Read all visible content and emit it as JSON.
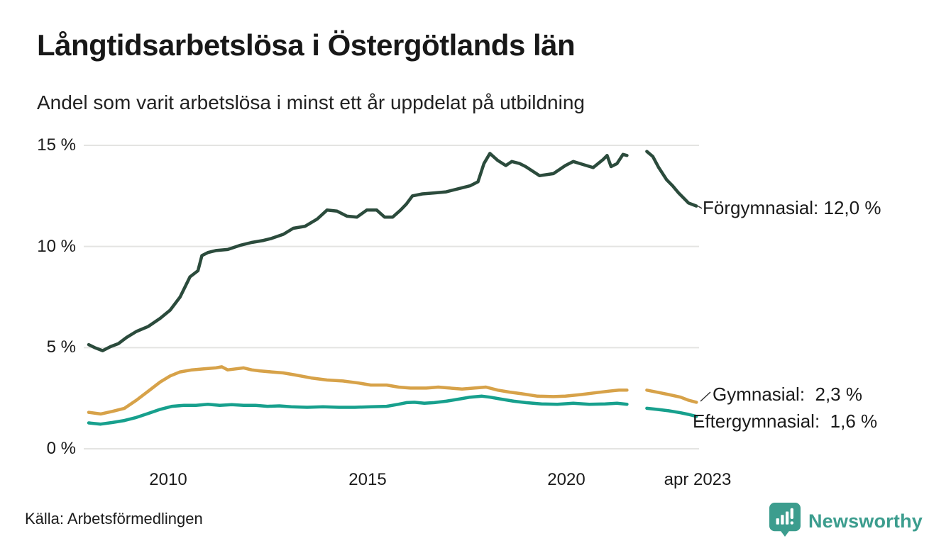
{
  "header": {
    "title": "Långtidsarbetslösa i Östergötlands län",
    "subtitle": "Andel som varit arbetslösa i minst ett år uppdelat på utbildning"
  },
  "footer": {
    "source": "Källa: Arbetsförmedlingen",
    "brand_name": "Newsworthy",
    "brand_icon": "newsworthy-pin-barchart-icon"
  },
  "colors": {
    "forgymnasial": "#2B4B3C",
    "gymnasial": "#D7A249",
    "eftergymnasial": "#17A08D",
    "grid": "#E4E4E2",
    "connector": "#333333",
    "text": "#1B1B1B",
    "brand": "#3C9D8E"
  },
  "chart_data": {
    "type": "line",
    "title": "Långtidsarbetslösa i Östergötlands län",
    "subtitle": "Andel som varit arbetslösa i minst ett år uppdelat på utbildning",
    "unit": "percent",
    "xlim": [
      2008,
      2023.33
    ],
    "ylim": [
      0,
      15
    ],
    "grid": "horizontal",
    "legend_position": "end-of-line-labels",
    "yticks": [
      {
        "value": 15,
        "label": "15 %"
      },
      {
        "value": 10,
        "label": "10 %"
      },
      {
        "value": 5,
        "label": "5 %"
      },
      {
        "value": 0,
        "label": "0 %"
      }
    ],
    "xticks": [
      {
        "value": 2010,
        "label": "2010"
      },
      {
        "value": 2015,
        "label": "2015"
      },
      {
        "value": 2020,
        "label": "2020"
      },
      {
        "value": 2023.25,
        "label": "apr 2023"
      }
    ],
    "series": [
      {
        "name": "Förgymnasial",
        "last_value": "12,0 %",
        "last_value_label": "Förgymnasial: 12,0 %",
        "color_key": "forgymnasial",
        "points": [
          [
            2008.0,
            5.15
          ],
          [
            2008.15,
            5.0
          ],
          [
            2008.35,
            4.85
          ],
          [
            2008.55,
            5.05
          ],
          [
            2008.75,
            5.2
          ],
          [
            2008.95,
            5.5
          ],
          [
            2009.2,
            5.8
          ],
          [
            2009.5,
            6.05
          ],
          [
            2009.8,
            6.45
          ],
          [
            2010.05,
            6.85
          ],
          [
            2010.3,
            7.5
          ],
          [
            2010.55,
            8.5
          ],
          [
            2010.75,
            8.8
          ],
          [
            2010.85,
            9.55
          ],
          [
            2011.0,
            9.7
          ],
          [
            2011.2,
            9.8
          ],
          [
            2011.5,
            9.85
          ],
          [
            2011.8,
            10.05
          ],
          [
            2012.1,
            10.2
          ],
          [
            2012.4,
            10.3
          ],
          [
            2012.6,
            10.4
          ],
          [
            2012.9,
            10.6
          ],
          [
            2013.15,
            10.9
          ],
          [
            2013.45,
            11.0
          ],
          [
            2013.75,
            11.35
          ],
          [
            2014.0,
            11.8
          ],
          [
            2014.25,
            11.75
          ],
          [
            2014.5,
            11.5
          ],
          [
            2014.75,
            11.45
          ],
          [
            2015.0,
            11.8
          ],
          [
            2015.25,
            11.8
          ],
          [
            2015.45,
            11.45
          ],
          [
            2015.65,
            11.45
          ],
          [
            2015.85,
            11.8
          ],
          [
            2016.0,
            12.1
          ],
          [
            2016.15,
            12.5
          ],
          [
            2016.4,
            12.6
          ],
          [
            2016.7,
            12.65
          ],
          [
            2017.0,
            12.7
          ],
          [
            2017.3,
            12.85
          ],
          [
            2017.6,
            13.0
          ],
          [
            2017.8,
            13.2
          ],
          [
            2017.95,
            14.1
          ],
          [
            2018.1,
            14.6
          ],
          [
            2018.3,
            14.25
          ],
          [
            2018.5,
            14.0
          ],
          [
            2018.65,
            14.2
          ],
          [
            2018.85,
            14.1
          ],
          [
            2019.0,
            13.95
          ],
          [
            2019.35,
            13.5
          ],
          [
            2019.7,
            13.6
          ],
          [
            2020.0,
            14.0
          ],
          [
            2020.2,
            14.2
          ],
          [
            2020.45,
            14.05
          ],
          [
            2020.7,
            13.9
          ],
          [
            2020.95,
            14.3
          ],
          [
            2021.05,
            14.5
          ],
          [
            2021.15,
            13.95
          ],
          [
            2021.3,
            14.1
          ],
          [
            2021.45,
            14.55
          ],
          [
            2021.55,
            14.5
          ],
          null,
          [
            2022.05,
            14.7
          ],
          [
            2022.2,
            14.45
          ],
          [
            2022.35,
            13.9
          ],
          [
            2022.55,
            13.3
          ],
          [
            2022.7,
            13.0
          ],
          [
            2022.85,
            12.65
          ],
          [
            2023.0,
            12.35
          ],
          [
            2023.1,
            12.15
          ],
          [
            2023.3,
            12.0
          ]
        ]
      },
      {
        "name": "Gymnasial",
        "last_value": "2,3 %",
        "last_value_label": "Gymnasial:  2,3 %",
        "color_key": "gymnasial",
        "points": [
          [
            2008.0,
            1.8
          ],
          [
            2008.3,
            1.72
          ],
          [
            2008.6,
            1.85
          ],
          [
            2008.9,
            2.0
          ],
          [
            2009.2,
            2.4
          ],
          [
            2009.5,
            2.85
          ],
          [
            2009.8,
            3.3
          ],
          [
            2010.05,
            3.6
          ],
          [
            2010.3,
            3.8
          ],
          [
            2010.6,
            3.9
          ],
          [
            2010.9,
            3.95
          ],
          [
            2011.2,
            4.0
          ],
          [
            2011.35,
            4.05
          ],
          [
            2011.5,
            3.9
          ],
          [
            2011.7,
            3.95
          ],
          [
            2011.9,
            4.0
          ],
          [
            2012.1,
            3.9
          ],
          [
            2012.3,
            3.85
          ],
          [
            2012.6,
            3.8
          ],
          [
            2012.9,
            3.75
          ],
          [
            2013.2,
            3.65
          ],
          [
            2013.6,
            3.5
          ],
          [
            2014.0,
            3.4
          ],
          [
            2014.4,
            3.35
          ],
          [
            2014.8,
            3.25
          ],
          [
            2015.1,
            3.15
          ],
          [
            2015.5,
            3.15
          ],
          [
            2015.8,
            3.05
          ],
          [
            2016.1,
            3.0
          ],
          [
            2016.5,
            3.0
          ],
          [
            2016.8,
            3.05
          ],
          [
            2017.1,
            3.0
          ],
          [
            2017.4,
            2.95
          ],
          [
            2017.7,
            3.0
          ],
          [
            2018.0,
            3.05
          ],
          [
            2018.3,
            2.9
          ],
          [
            2018.6,
            2.8
          ],
          [
            2018.9,
            2.72
          ],
          [
            2019.3,
            2.6
          ],
          [
            2019.7,
            2.58
          ],
          [
            2020.0,
            2.6
          ],
          [
            2020.4,
            2.68
          ],
          [
            2020.8,
            2.78
          ],
          [
            2021.1,
            2.85
          ],
          [
            2021.35,
            2.9
          ],
          [
            2021.55,
            2.9
          ],
          null,
          [
            2022.05,
            2.9
          ],
          [
            2022.3,
            2.8
          ],
          [
            2022.6,
            2.68
          ],
          [
            2022.9,
            2.55
          ],
          [
            2023.1,
            2.4
          ],
          [
            2023.3,
            2.3
          ]
        ]
      },
      {
        "name": "Eftergymnasial",
        "last_value": "1,6 %",
        "last_value_label": "Eftergymnasial:  1,6 %",
        "color_key": "eftergymnasial",
        "points": [
          [
            2008.0,
            1.28
          ],
          [
            2008.3,
            1.22
          ],
          [
            2008.6,
            1.3
          ],
          [
            2008.9,
            1.4
          ],
          [
            2009.2,
            1.55
          ],
          [
            2009.5,
            1.75
          ],
          [
            2009.8,
            1.95
          ],
          [
            2010.1,
            2.1
          ],
          [
            2010.4,
            2.15
          ],
          [
            2010.7,
            2.15
          ],
          [
            2011.0,
            2.2
          ],
          [
            2011.3,
            2.15
          ],
          [
            2011.6,
            2.18
          ],
          [
            2011.9,
            2.15
          ],
          [
            2012.2,
            2.15
          ],
          [
            2012.5,
            2.1
          ],
          [
            2012.8,
            2.12
          ],
          [
            2013.1,
            2.08
          ],
          [
            2013.5,
            2.05
          ],
          [
            2013.9,
            2.08
          ],
          [
            2014.3,
            2.05
          ],
          [
            2014.7,
            2.05
          ],
          [
            2015.1,
            2.08
          ],
          [
            2015.5,
            2.1
          ],
          [
            2015.8,
            2.2
          ],
          [
            2016.0,
            2.28
          ],
          [
            2016.2,
            2.3
          ],
          [
            2016.45,
            2.25
          ],
          [
            2016.7,
            2.28
          ],
          [
            2017.0,
            2.35
          ],
          [
            2017.3,
            2.45
          ],
          [
            2017.6,
            2.55
          ],
          [
            2017.9,
            2.6
          ],
          [
            2018.1,
            2.55
          ],
          [
            2018.4,
            2.45
          ],
          [
            2018.7,
            2.35
          ],
          [
            2019.0,
            2.28
          ],
          [
            2019.4,
            2.22
          ],
          [
            2019.8,
            2.2
          ],
          [
            2020.2,
            2.25
          ],
          [
            2020.6,
            2.2
          ],
          [
            2021.0,
            2.22
          ],
          [
            2021.3,
            2.25
          ],
          [
            2021.55,
            2.2
          ],
          null,
          [
            2022.05,
            2.0
          ],
          [
            2022.3,
            1.95
          ],
          [
            2022.6,
            1.88
          ],
          [
            2022.9,
            1.78
          ],
          [
            2023.1,
            1.7
          ],
          [
            2023.3,
            1.6
          ]
        ]
      }
    ]
  }
}
